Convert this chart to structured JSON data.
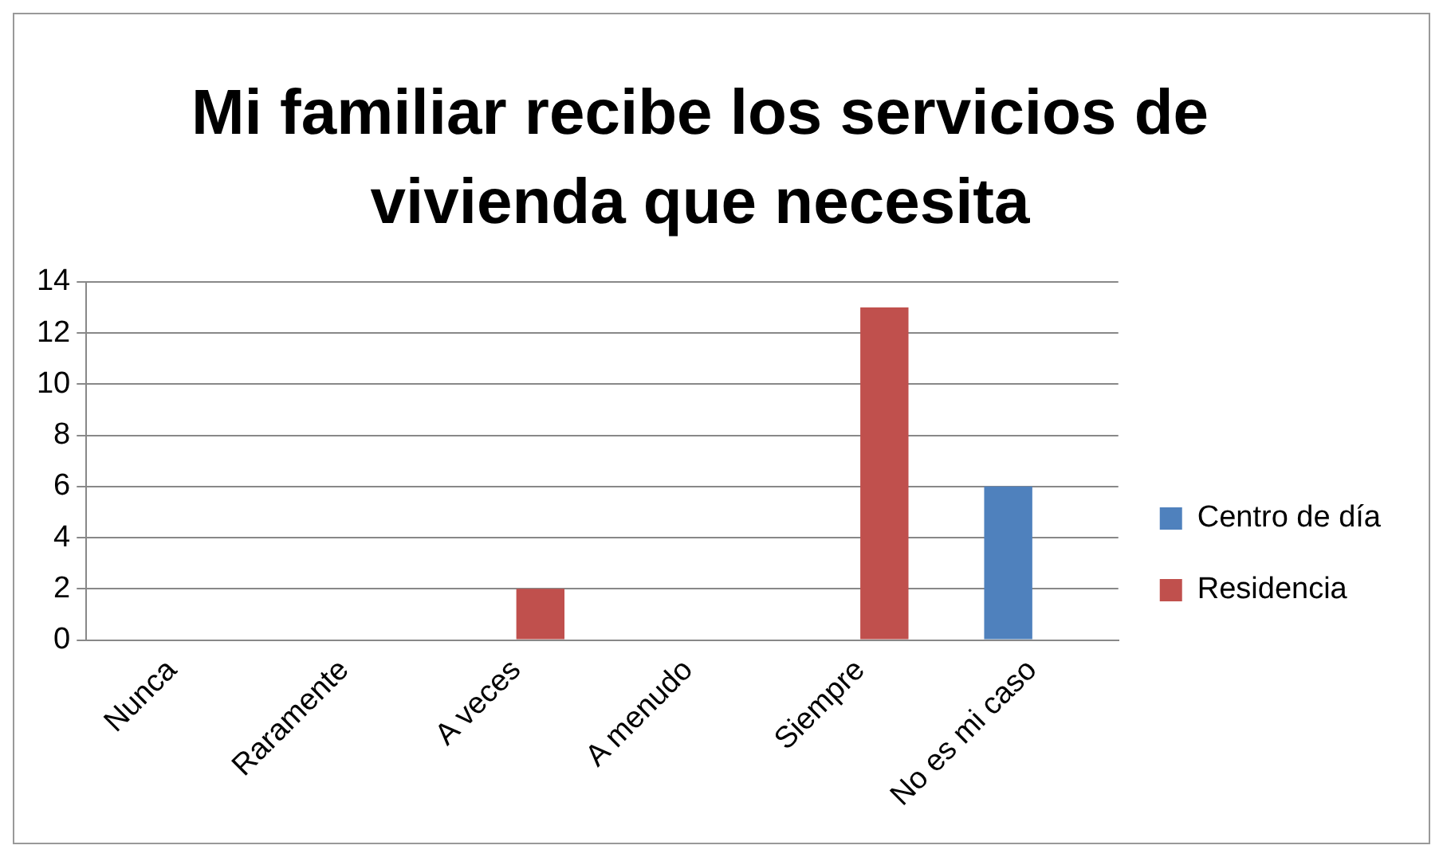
{
  "chart_data": {
    "type": "bar",
    "title": "Mi familiar recibe los servicios de vivienda que necesita",
    "categories": [
      "Nunca",
      "Raramente",
      "A veces",
      "A menudo",
      "Siempre",
      "No es mi caso"
    ],
    "series": [
      {
        "name": "Centro de día",
        "color": "#4f81bd",
        "values": [
          0,
          0,
          0,
          0,
          0,
          6
        ]
      },
      {
        "name": "Residencia",
        "color": "#c0504d",
        "values": [
          0,
          0,
          2,
          0,
          13,
          0
        ]
      }
    ],
    "ylim": [
      0,
      14
    ],
    "yticks": [
      0,
      2,
      4,
      6,
      8,
      10,
      12,
      14
    ],
    "grid": "y",
    "legend": "right"
  }
}
